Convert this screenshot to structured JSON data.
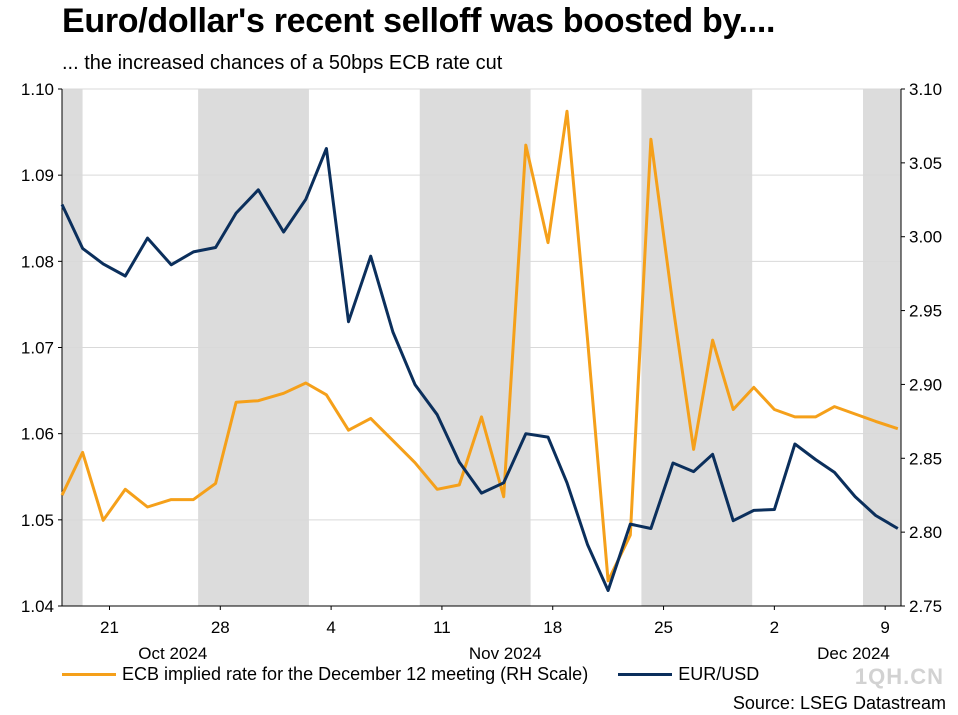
{
  "title": "Euro/dollar's recent selloff was boosted by....",
  "subtitle": "... the increased chances of a 50bps ECB rate cut",
  "legend": {
    "ecb_label": "ECB implied rate for the December 12 meeting (RH Scale)",
    "eur_label": "EUR/USD"
  },
  "watermark": "1QH.CN",
  "source": "Source: LSEG Datastream",
  "colors": {
    "ecb": "#f5a01a",
    "eur": "#0b2f5c",
    "weekend": "#dcdcdc",
    "grid": "#d9d9d9"
  },
  "chart_data": {
    "type": "line",
    "left_axis": {
      "ylim": [
        1.04,
        1.1
      ],
      "ticks": [
        "1.04",
        "1.05",
        "1.06",
        "1.07",
        "1.08",
        "1.09",
        "1.10"
      ]
    },
    "right_axis": {
      "ylim": [
        2.75,
        3.1
      ],
      "ticks": [
        "2.75",
        "2.80",
        "2.85",
        "2.90",
        "2.95",
        "3.00",
        "3.05",
        "3.10"
      ]
    },
    "x_day_ticks": [
      {
        "label": "21",
        "day": 3
      },
      {
        "label": "28",
        "day": 10
      },
      {
        "label": "4",
        "day": 17
      },
      {
        "label": "11",
        "day": 24
      },
      {
        "label": "18",
        "day": 31
      },
      {
        "label": "25",
        "day": 38
      },
      {
        "label": "2",
        "day": 45
      },
      {
        "label": "9",
        "day": 52
      }
    ],
    "x_month_labels": [
      {
        "label": "Oct 2024",
        "day": 7
      },
      {
        "label": "Nov 2024",
        "day": 28
      },
      {
        "label": "Dec 2024",
        "day": 50
      }
    ],
    "x_range": [
      0,
      53
    ],
    "shaded_bands": [
      [
        0,
        1.3
      ],
      [
        8.6,
        15.6
      ],
      [
        22.6,
        29.6
      ],
      [
        36.6,
        43.6
      ],
      [
        50.6,
        53
      ]
    ],
    "series": [
      {
        "name": "ECB implied rate for the December 12 meeting (RH Scale)",
        "axis": "right",
        "x": [
          0,
          1.3,
          2.6,
          4,
          5.4,
          6.9,
          8.3,
          9.7,
          11,
          12.4,
          14,
          15.4,
          16.7,
          18.1,
          19.5,
          20.9,
          22.3,
          23.7,
          25.1,
          26.5,
          27.9,
          29.3,
          30.7,
          31.9,
          33.2,
          34.5,
          35.9,
          37.2,
          38.6,
          39.9,
          41.1,
          42.4,
          43.7,
          45,
          46.3,
          47.6,
          48.8,
          50.1,
          51.4,
          52.8
        ],
        "values": [
          2.825,
          2.854,
          2.808,
          2.829,
          2.817,
          2.822,
          2.822,
          2.833,
          2.888,
          2.889,
          2.894,
          2.901,
          2.893,
          2.869,
          2.877,
          2.862,
          2.847,
          2.829,
          2.832,
          2.878,
          2.824,
          3.062,
          2.996,
          3.085,
          2.93,
          2.767,
          2.798,
          3.066,
          2.953,
          2.856,
          2.93,
          2.883,
          2.898,
          2.883,
          2.878,
          2.878,
          2.885,
          2.88,
          2.875,
          2.87
        ]
      },
      {
        "name": "EUR/USD",
        "axis": "left",
        "x": [
          0,
          1.3,
          2.6,
          4,
          5.4,
          6.9,
          8.3,
          9.7,
          11,
          12.4,
          14,
          15.4,
          16.7,
          18.1,
          19.5,
          20.9,
          22.3,
          23.7,
          25.1,
          26.5,
          27.9,
          29.3,
          30.7,
          31.9,
          33.2,
          34.5,
          35.9,
          37.2,
          38.6,
          39.9,
          41.1,
          42.4,
          43.7,
          45,
          46.3,
          47.6,
          48.8,
          50.1,
          51.4,
          52.8
        ],
        "values": [
          1.0866,
          1.0815,
          1.0797,
          1.0783,
          1.0827,
          1.0796,
          1.0811,
          1.0816,
          1.0856,
          1.0883,
          1.0834,
          1.0872,
          1.0931,
          1.073,
          1.0806,
          1.0718,
          1.0657,
          1.0622,
          1.0567,
          1.0531,
          1.0543,
          1.06,
          1.0596,
          1.0543,
          1.0471,
          1.0418,
          1.0495,
          1.049,
          1.0566,
          1.0556,
          1.0576,
          1.0499,
          1.0511,
          1.0512,
          1.0588,
          1.057,
          1.0555,
          1.0527,
          1.0505,
          1.049
        ]
      }
    ]
  }
}
